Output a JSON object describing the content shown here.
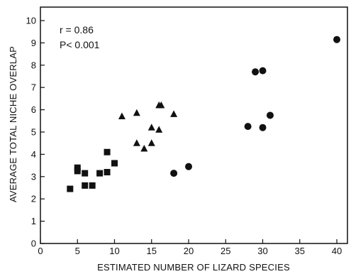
{
  "chart_data": {
    "type": "scatter",
    "title": "",
    "xlabel": "ESTIMATED NUMBER OF LIZARD SPECIES",
    "ylabel": "AVERAGE TOTAL NICHE OVERLAP",
    "xlim": [
      0,
      45
    ],
    "ylim": [
      0,
      10.5
    ],
    "xticks": [
      0,
      5,
      10,
      15,
      20,
      25,
      30,
      35,
      40
    ],
    "yticks": [
      0,
      1,
      2,
      3,
      4,
      5,
      6,
      7,
      8,
      9,
      10
    ],
    "grid": false,
    "annotations": [
      "r = 0.86",
      "P< 0.001"
    ],
    "series": [
      {
        "marker": "square",
        "points": [
          {
            "x": 4,
            "y": 2.45
          },
          {
            "x": 5,
            "y": 3.4
          },
          {
            "x": 5,
            "y": 3.25
          },
          {
            "x": 6,
            "y": 3.15
          },
          {
            "x": 6,
            "y": 2.6
          },
          {
            "x": 7,
            "y": 2.6
          },
          {
            "x": 8,
            "y": 3.15
          },
          {
            "x": 9,
            "y": 3.2
          },
          {
            "x": 9,
            "y": 4.1
          },
          {
            "x": 10,
            "y": 3.6
          }
        ]
      },
      {
        "marker": "triangle",
        "points": [
          {
            "x": 11,
            "y": 5.7
          },
          {
            "x": 13,
            "y": 5.85
          },
          {
            "x": 13,
            "y": 4.5
          },
          {
            "x": 14,
            "y": 4.25
          },
          {
            "x": 15,
            "y": 5.2
          },
          {
            "x": 15,
            "y": 4.5
          },
          {
            "x": 16,
            "y": 6.2
          },
          {
            "x": 16,
            "y": 5.1
          },
          {
            "x": 16.3,
            "y": 6.2
          },
          {
            "x": 18,
            "y": 5.8
          }
        ]
      },
      {
        "marker": "circle",
        "points": [
          {
            "x": 18,
            "y": 3.15
          },
          {
            "x": 20,
            "y": 3.45
          },
          {
            "x": 28,
            "y": 5.25
          },
          {
            "x": 29,
            "y": 7.7
          },
          {
            "x": 30,
            "y": 7.75
          },
          {
            "x": 30,
            "y": 5.2
          },
          {
            "x": 31,
            "y": 5.75
          },
          {
            "x": 40,
            "y": 9.15
          }
        ]
      }
    ]
  }
}
